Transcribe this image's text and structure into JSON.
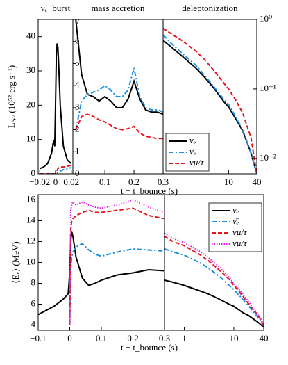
{
  "chart_data": [
    {
      "type": "line",
      "title": "νₑ−burst",
      "ylabel": "Lₑ,ᵥ (10⁵² erg s⁻¹)",
      "x": [
        -0.02,
        -0.015,
        -0.01,
        -0.005,
        -0.003,
        -0.002,
        -0.001,
        0,
        0.001,
        0.002,
        0.003,
        0.004,
        0.006,
        0.01,
        0.015,
        0.02
      ],
      "series": [
        {
          "color": "#000000",
          "style": "solid",
          "values": [
            1.5,
            2,
            3,
            6,
            9,
            9.5,
            8,
            20,
            34,
            38,
            37,
            32,
            20,
            8,
            4,
            3
          ]
        },
        {
          "color": "#1a8fe3",
          "style": "dashdot",
          "values": [
            0,
            0,
            0,
            0,
            0,
            0,
            0,
            0,
            0,
            0.1,
            0.3,
            0.5,
            0.8,
            1.2,
            1.5,
            1.8
          ]
        },
        {
          "color": "#e8141e",
          "style": "dashed",
          "values": [
            0,
            0,
            0,
            0,
            0,
            0,
            0,
            0.1,
            0.5,
            1,
            1.5,
            1.7,
            2,
            2,
            2.2,
            2.5
          ]
        }
      ],
      "xlim": [
        -0.022,
        0.022
      ],
      "xticks": [
        {
          "value": -0.02,
          "label": "−0.02"
        },
        0,
        0.02
      ],
      "ylim": [
        0,
        45
      ],
      "yticks": [
        0,
        10,
        20,
        30,
        40
      ]
    },
    {
      "type": "line",
      "title": "mass accretion",
      "xlabel": "t − t_bounce (s)",
      "x": [
        0,
        0.02,
        0.04,
        0.06,
        0.08,
        0.1,
        0.12,
        0.14,
        0.16,
        0.18,
        0.2,
        0.22,
        0.24,
        0.26,
        0.28,
        0.3
      ],
      "series": [
        {
          "color": "#000000",
          "style": "solid",
          "values": [
            7,
            4.5,
            3.6,
            3.5,
            3.3,
            3.5,
            3.3,
            3.0,
            3.0,
            3.4,
            4.2,
            3.4,
            2.9,
            2.8,
            2.8,
            2.7
          ]
        },
        {
          "color": "#1a8fe3",
          "style": "dashdot",
          "values": [
            2,
            3.3,
            3.6,
            3.7,
            3.8,
            4.0,
            3.8,
            3.5,
            3.5,
            3.8,
            4.8,
            3.5,
            3.0,
            2.9,
            2.9,
            2.8
          ]
        },
        {
          "color": "#e8141e",
          "style": "dashed",
          "values": [
            2,
            2.6,
            2.7,
            2.6,
            2.45,
            2.35,
            2.2,
            2.05,
            2.0,
            2.05,
            2.15,
            1.85,
            1.7,
            1.65,
            1.6,
            1.6
          ]
        }
      ],
      "xlim": [
        -0.01,
        0.3
      ],
      "xticks": [
        0.1,
        0.2,
        0.3
      ],
      "ylim": [
        0,
        7
      ],
      "yticks": [
        0,
        1,
        2,
        3,
        4,
        5,
        6,
        7
      ]
    },
    {
      "type": "line",
      "title": "deleptonization",
      "xlog": true,
      "ylog": true,
      "legend": "lower left",
      "x": [
        0.4,
        0.6,
        1,
        2,
        3,
        5,
        8,
        10,
        15,
        20,
        30,
        40
      ],
      "series": [
        {
          "name": "νₑ",
          "color": "#000000",
          "style": "solid",
          "values": [
            0.5,
            0.4,
            0.3,
            0.2,
            0.15,
            0.1,
            0.065,
            0.055,
            0.035,
            0.025,
            0.012,
            0.006
          ]
        },
        {
          "name": "ν̄ₑ",
          "color": "#1a8fe3",
          "style": "dashdot",
          "values": [
            0.6,
            0.45,
            0.33,
            0.22,
            0.16,
            0.105,
            0.07,
            0.06,
            0.037,
            0.026,
            0.012,
            0.006
          ]
        },
        {
          "name": "νμ/τ",
          "color": "#e8141e",
          "style": "dashed",
          "values": [
            0.75,
            0.62,
            0.5,
            0.35,
            0.27,
            0.18,
            0.12,
            0.1,
            0.065,
            0.045,
            0.02,
            0.006
          ]
        }
      ],
      "xlim": [
        0.4,
        40
      ],
      "xticks": [
        10,
        40
      ],
      "ylim": [
        0.006,
        1
      ],
      "yticks": [
        {
          "value": 1,
          "label": "10⁰"
        },
        {
          "value": 0.1,
          "label": "10⁻¹"
        },
        {
          "value": 0.01,
          "label": "10⁻²"
        }
      ]
    },
    {
      "type": "line",
      "ylabel": "⟨Eᵥ⟩ (MeV)",
      "xlabel": "t − t_bounce (s)",
      "x": [
        -0.1,
        -0.05,
        -0.02,
        -0.005,
        0,
        0.003,
        0.006,
        0.01,
        0.02,
        0.04,
        0.06,
        0.08,
        0.1,
        0.15,
        0.2,
        0.25,
        0.3
      ],
      "series": [
        {
          "color": "#000000",
          "style": "solid",
          "values": [
            5,
            5.8,
            6.5,
            7,
            9,
            12,
            13,
            12.5,
            10.5,
            8.5,
            7.8,
            8,
            8.3,
            8.8,
            9,
            9.3,
            9.2
          ]
        },
        {
          "color": "#1a8fe3",
          "style": "dashdot",
          "values": [
            null,
            null,
            null,
            null,
            4,
            9,
            10.5,
            11,
            11.5,
            11.8,
            11.2,
            10.8,
            10.6,
            11,
            11.3,
            11.2,
            11.1
          ]
        },
        {
          "color": "#e8141e",
          "style": "dashed",
          "values": [
            null,
            null,
            null,
            null,
            4,
            13,
            14,
            14.2,
            14.5,
            14.8,
            15,
            14.8,
            14.8,
            15,
            15.2,
            14.5,
            14.2
          ]
        },
        {
          "color": "#e020e0",
          "style": "dotted",
          "values": [
            null,
            null,
            null,
            null,
            4,
            15,
            15.5,
            15.8,
            15.5,
            15.8,
            15.5,
            15.3,
            15.2,
            15.5,
            16,
            15.3,
            14.8
          ]
        }
      ],
      "xlim": [
        -0.1,
        0.3
      ],
      "xticks": [
        {
          "value": -0.1,
          "label": "−0.1"
        },
        0,
        0.1,
        0.2,
        0.3
      ],
      "ylim": [
        3.5,
        16.5
      ],
      "yticks": [
        4,
        6,
        8,
        10,
        12,
        14,
        16
      ]
    },
    {
      "type": "line",
      "xlog": true,
      "legend": "upper right",
      "x": [
        0.4,
        0.6,
        1,
        2,
        3,
        5,
        8,
        10,
        15,
        20,
        30,
        40
      ],
      "series": [
        {
          "name": "νₑ",
          "color": "#000000",
          "style": "solid",
          "values": [
            8.3,
            8.1,
            7.8,
            7.3,
            7,
            6.5,
            6,
            5.8,
            5.2,
            4.9,
            4.3,
            3.8
          ]
        },
        {
          "name": "ν̄ₑ",
          "color": "#1a8fe3",
          "style": "dashdot",
          "values": [
            11.3,
            11,
            10.7,
            10,
            9.5,
            8.7,
            7.8,
            7.4,
            6.5,
            5.8,
            4.8,
            3.9
          ]
        },
        {
          "name": "νμ/τ",
          "color": "#e8141e",
          "style": "dashed",
          "values": [
            12.5,
            12,
            11.6,
            10.8,
            10.2,
            9.3,
            8.4,
            7.8,
            6.8,
            6,
            5,
            4
          ]
        },
        {
          "name": "ν̄μ/τ",
          "color": "#e020e0",
          "style": "dotted",
          "values": [
            12.8,
            12.3,
            11.9,
            11.1,
            10.5,
            9.6,
            8.6,
            8,
            7,
            6.2,
            5.1,
            4.1
          ]
        }
      ],
      "xlim": [
        0.4,
        40
      ],
      "xticks": [
        1,
        10,
        40
      ],
      "ylim": [
        3.5,
        16.5
      ]
    }
  ]
}
